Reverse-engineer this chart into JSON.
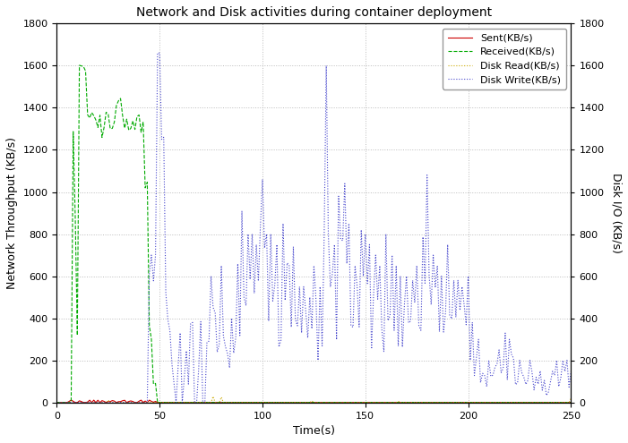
{
  "title": "Network and Disk activities during container deployment",
  "xlabel": "Time(s)",
  "ylabel_left": "Network Throughput (KB/s)",
  "ylabel_right": "Disk I/O (KB/s)",
  "xlim": [
    0,
    250
  ],
  "ylim": [
    0,
    1800
  ],
  "xticks": [
    0,
    50,
    100,
    150,
    200,
    250
  ],
  "yticks": [
    0,
    200,
    400,
    600,
    800,
    1000,
    1200,
    1400,
    1600,
    1800
  ],
  "legend": [
    {
      "label": "Sent(KB/s)",
      "color": "#cc0000",
      "linestyle": "-",
      "linewidth": 0.8
    },
    {
      "label": "Received(KB/s)",
      "color": "#00aa00",
      "linestyle": "--",
      "linewidth": 0.8
    },
    {
      "label": "Disk Read(KB/s)",
      "color": "#ccaa00",
      "linestyle": ":",
      "linewidth": 0.8
    },
    {
      "label": "Disk Write(KB/s)",
      "color": "#4444cc",
      "linestyle": ":",
      "linewidth": 0.8
    }
  ],
  "background": "#ffffff",
  "grid_color": "#aaaaaa",
  "grid_alpha": 0.8,
  "title_fontsize": 10,
  "label_fontsize": 9,
  "tick_fontsize": 8,
  "legend_fontsize": 8
}
